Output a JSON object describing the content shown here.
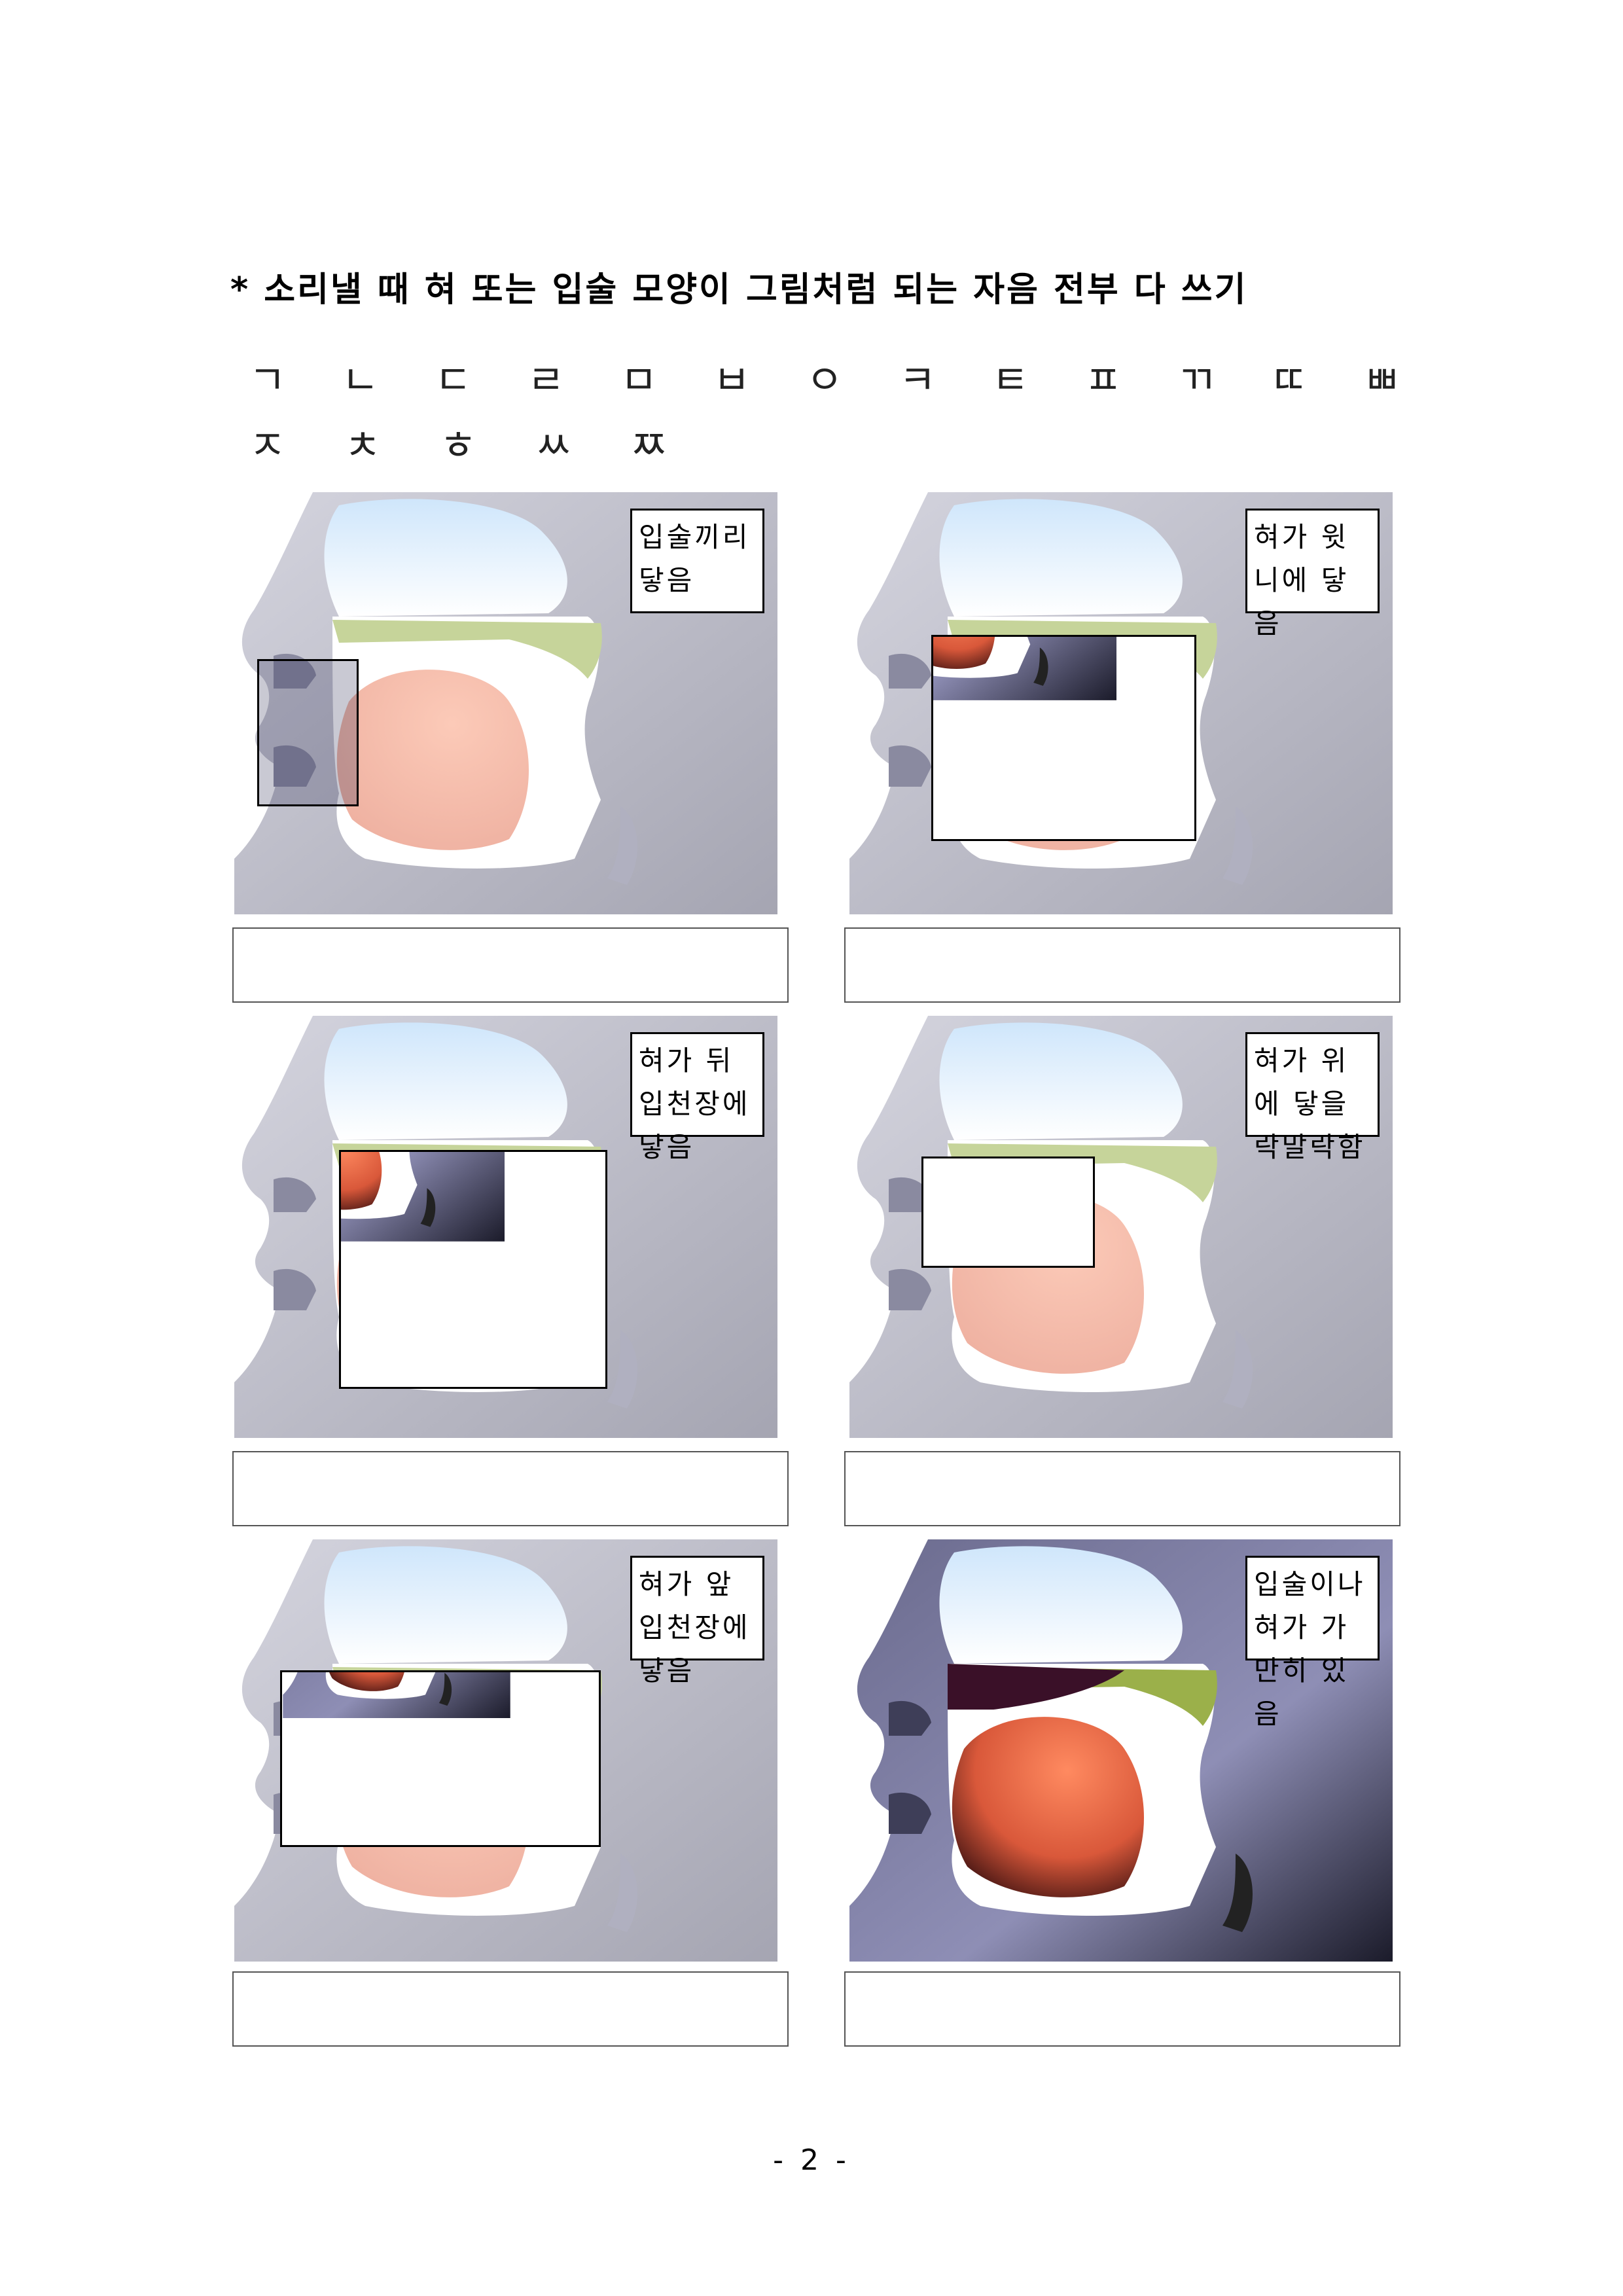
{
  "title": "* 소리낼 때 혀 또는 입술 모양이 그림처럼 되는 자음 전부 다 쓰기",
  "consonants_row1": [
    "ㄱ",
    "ㄴ",
    "ㄷ",
    "ㄹ",
    "ㅁ",
    "ㅂ",
    "ㅇ",
    "ㅋ",
    "ㅌ",
    "ㅍ",
    "ㄲ",
    "ㄸ",
    "ㅃ"
  ],
  "consonants_row2": [
    "ㅈ",
    "ㅊ",
    "ㅎ",
    "ㅆ",
    "ㅉ"
  ],
  "panels": [
    {
      "caption": "입술끼리 닿음"
    },
    {
      "caption": "혀가 윗니에 닿음"
    },
    {
      "caption": "혀가 뒤입천장에 닿음"
    },
    {
      "caption": "혀가 위에 닿을락말락함"
    },
    {
      "caption": "혀가 앞입천장에 닿음"
    },
    {
      "caption": "입술이나 혀가 가만히 있음"
    }
  ],
  "page_number": "- 2 -"
}
